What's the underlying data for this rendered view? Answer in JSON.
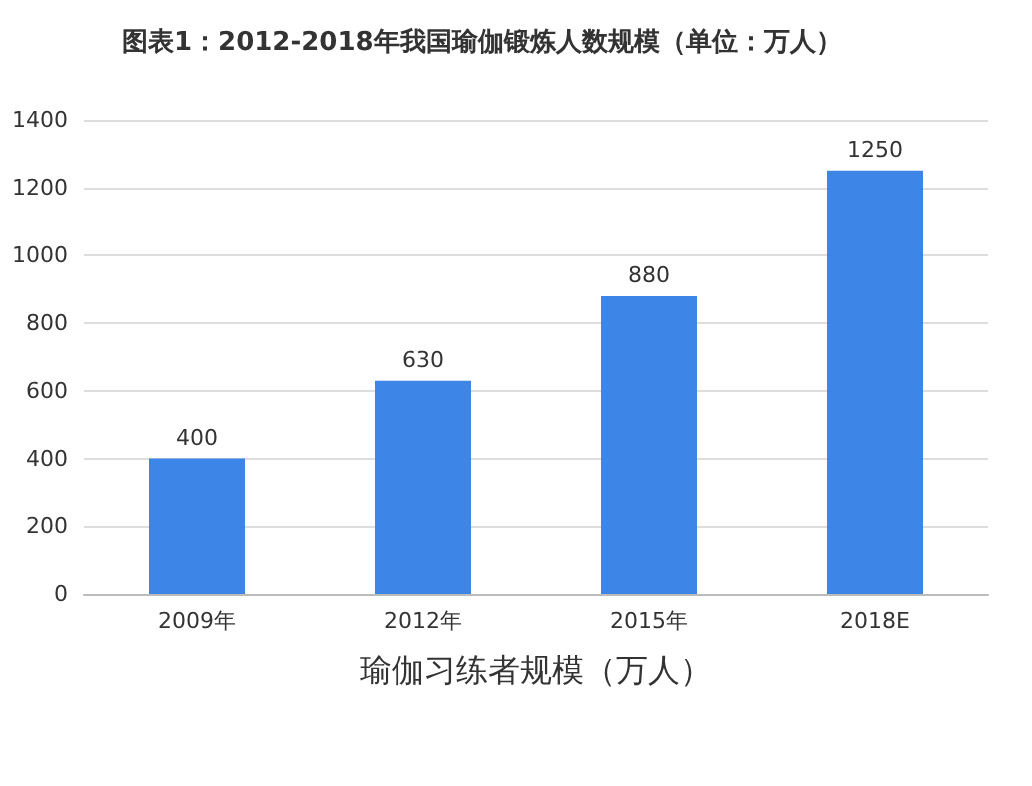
{
  "chart_data": {
    "type": "bar",
    "title": "图表1：2012-2018年我国瑜伽锻炼人数规模（单位：万人）",
    "xlabel": "瑜伽习练者规模（万人）",
    "categories": [
      "2009年",
      "2012年",
      "2015年",
      "2018E"
    ],
    "values": [
      400,
      630,
      880,
      1250
    ],
    "color": "#3d85e6",
    "ylim": [
      0,
      1400
    ],
    "yticks": [
      0,
      200,
      400,
      600,
      800,
      1000,
      1200,
      1400
    ],
    "grid": "y",
    "data_labels": true
  }
}
